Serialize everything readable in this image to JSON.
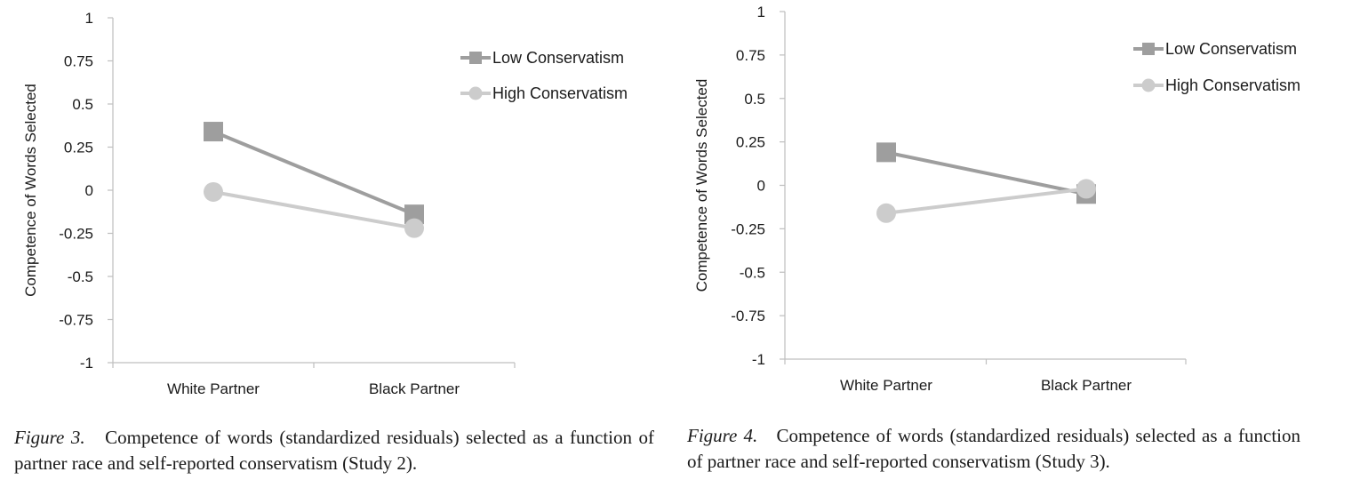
{
  "colors": {
    "low": "#9e9e9e",
    "high": "#cccccc",
    "axis": "#bfbfbf"
  },
  "chart_data": [
    {
      "type": "line",
      "categories": [
        "White Partner",
        "Black Partner"
      ],
      "series": [
        {
          "name": "Low Conservatism",
          "values": [
            0.34,
            -0.14
          ],
          "marker": "square"
        },
        {
          "name": "High Conservatism",
          "values": [
            -0.01,
            -0.22
          ],
          "marker": "circle"
        }
      ],
      "ylabel": "Competence of Words Selected",
      "ylim": [
        -1,
        1
      ],
      "yticks": [
        "1",
        "0.75",
        "0.5",
        "0.25",
        "0",
        "-0.25",
        "-0.5",
        "-0.75",
        "-1"
      ],
      "grid": false,
      "legend": "top-right"
    },
    {
      "type": "line",
      "categories": [
        "White Partner",
        "Black Partner"
      ],
      "series": [
        {
          "name": "Low Conservatism",
          "values": [
            0.19,
            -0.05
          ],
          "marker": "square"
        },
        {
          "name": "High Conservatism",
          "values": [
            -0.16,
            -0.02
          ],
          "marker": "circle"
        }
      ],
      "ylabel": "Competence of Words Selected",
      "ylim": [
        -1,
        1
      ],
      "yticks": [
        "1",
        "0.75",
        "0.5",
        "0.25",
        "0",
        "-0.25",
        "-0.5",
        "-0.75",
        "-1"
      ],
      "grid": false,
      "legend": "top-right"
    }
  ],
  "captions": [
    {
      "label": "Figure 3.",
      "text": "Competence of words (standardized residuals) selected as a function of partner race and self-reported conservatism (Study 2)."
    },
    {
      "label": "Figure 4.",
      "text": "Competence of words (standardized residuals) selected as a function of partner race and self-reported conservatism (Study 3)."
    }
  ]
}
